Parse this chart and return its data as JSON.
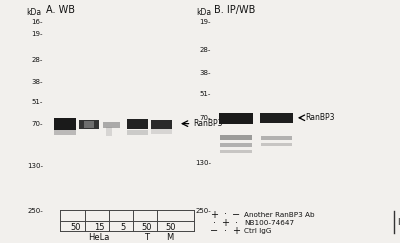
{
  "panel_A_title": "A. WB",
  "panel_B_title": "B. IP/WB",
  "kda_label": "kDa",
  "mw_markers_A": [
    250,
    130,
    70,
    51,
    38,
    28,
    19,
    16
  ],
  "mw_markers_B": [
    250,
    130,
    70,
    51,
    38,
    28,
    19
  ],
  "ranbp3_label": "←RanBP3",
  "panel_A_lanes": [
    "50",
    "15",
    "5",
    "50",
    "50"
  ],
  "panel_A_groups": [
    "HeLa",
    "T",
    "M"
  ],
  "legend_rows": [
    "Another RanBP3 Ab",
    "NB100-74647",
    "Ctrl IgG"
  ],
  "legend_symbols_col1": [
    "+",
    "·",
    "−"
  ],
  "legend_symbols_col2": [
    "·",
    "+",
    "·"
  ],
  "legend_symbols_col3": [
    "−",
    "·",
    "+"
  ],
  "ip_label": "IP",
  "fig_bg": "#f2f0ed",
  "blot_bg_A": "#dedad4",
  "blot_bg_B": "#e0dcd6",
  "text_color": "#111111"
}
